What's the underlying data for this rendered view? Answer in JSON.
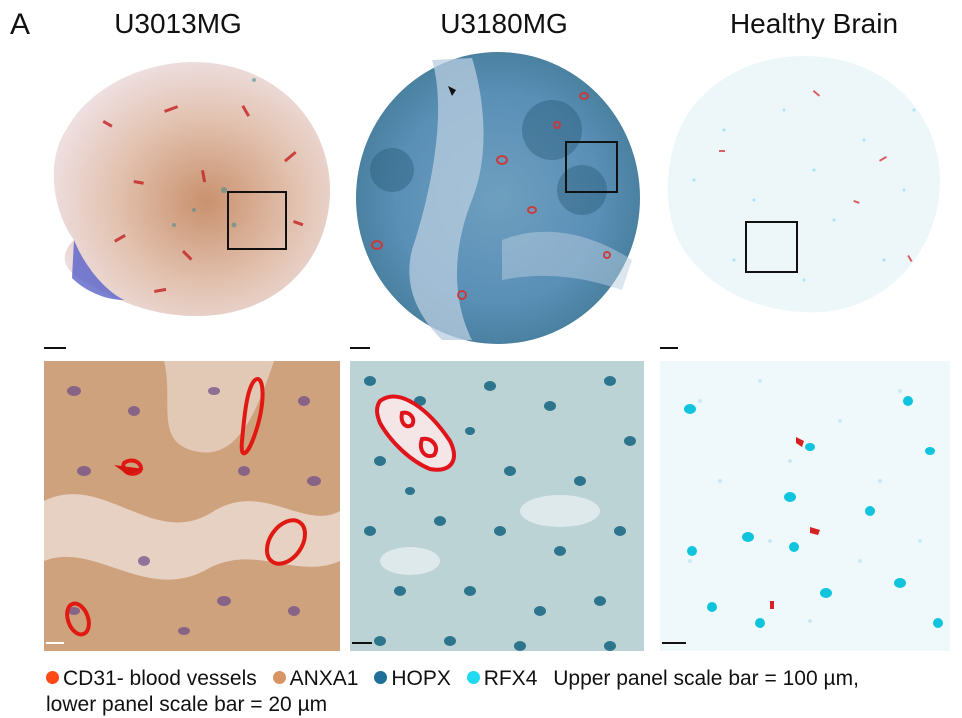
{
  "figure": {
    "panel_letter": "A",
    "columns": [
      {
        "title": "U3013MG"
      },
      {
        "title": "U3180MG"
      },
      {
        "title": "Healthy Brain"
      }
    ]
  },
  "legend": {
    "items": [
      {
        "label": "CD31- blood vessels",
        "color": "#ff4a17"
      },
      {
        "label": "ANXA1",
        "color": "#d99466"
      },
      {
        "label": "HOPX",
        "color": "#1f6f98"
      },
      {
        "label": "RFX4",
        "color": "#22d9f2"
      }
    ],
    "note_line1": "Upper panel scale bar = 100 µm,",
    "note_line2": "lower panel scale bar = 20 µm"
  }
}
